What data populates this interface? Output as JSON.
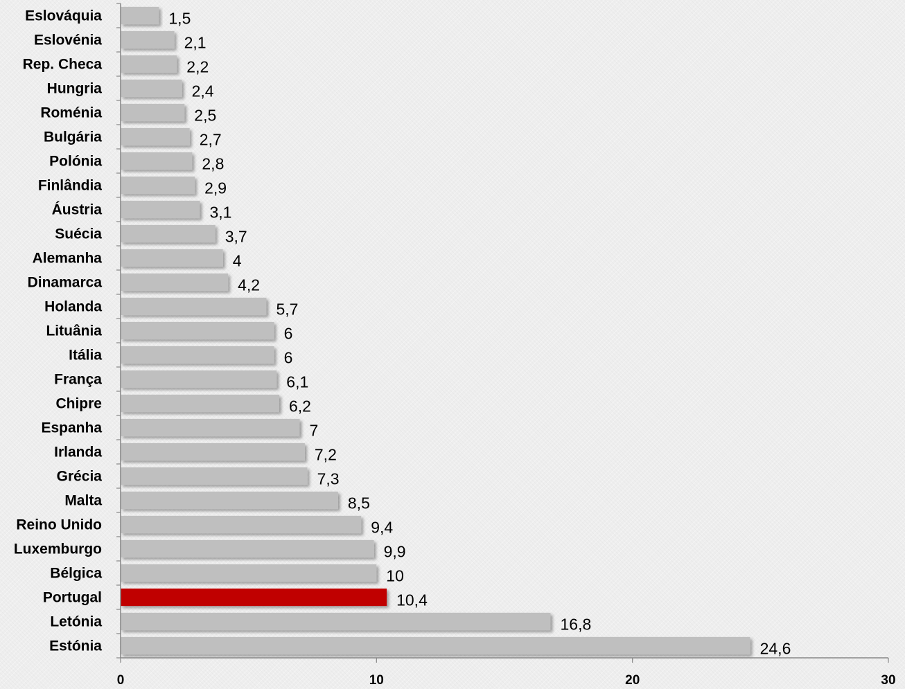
{
  "chart_data": {
    "type": "bar",
    "orientation": "horizontal",
    "categories": [
      "Eslováquia",
      "Eslovénia",
      "Rep. Checa",
      "Hungria",
      "Roménia",
      "Bulgária",
      "Polónia",
      "Finlândia",
      "Áustria",
      "Suécia",
      "Alemanha",
      "Dinamarca",
      "Holanda",
      "Lituânia",
      "Itália",
      "França",
      "Chipre",
      "Espanha",
      "Irlanda",
      "Grécia",
      "Malta",
      "Reino Unido",
      "Luxemburgo",
      "Bélgica",
      "Portugal",
      "Letónia",
      "Estónia"
    ],
    "values": [
      1.5,
      2.1,
      2.2,
      2.4,
      2.5,
      2.7,
      2.8,
      2.9,
      3.1,
      3.7,
      4,
      4.2,
      5.7,
      6,
      6,
      6.1,
      6.2,
      7,
      7.2,
      7.3,
      8.5,
      9.4,
      9.9,
      10,
      10.4,
      16.8,
      24.6
    ],
    "value_labels": [
      "1,5",
      "2,1",
      "2,2",
      "2,4",
      "2,5",
      "2,7",
      "2,8",
      "2,9",
      "3,1",
      "3,7",
      "4",
      "4,2",
      "5,7",
      "6",
      "6",
      "6,1",
      "6,2",
      "7",
      "7,2",
      "7,3",
      "8,5",
      "9,4",
      "9,9",
      "10",
      "10,4",
      "16,8",
      "24,6"
    ],
    "xlim": [
      0,
      30
    ],
    "x_ticks": [
      0,
      10,
      20,
      30
    ],
    "x_tick_labels": [
      "0",
      "10",
      "20",
      "30"
    ],
    "highlight_category": "Portugal",
    "colors": {
      "bar": "#bfbfbf",
      "highlight": "#c00000",
      "axis": "#868686",
      "background": "#eeeeee"
    },
    "grid": false,
    "legend": "none",
    "title": "",
    "xlabel": "",
    "ylabel": ""
  }
}
